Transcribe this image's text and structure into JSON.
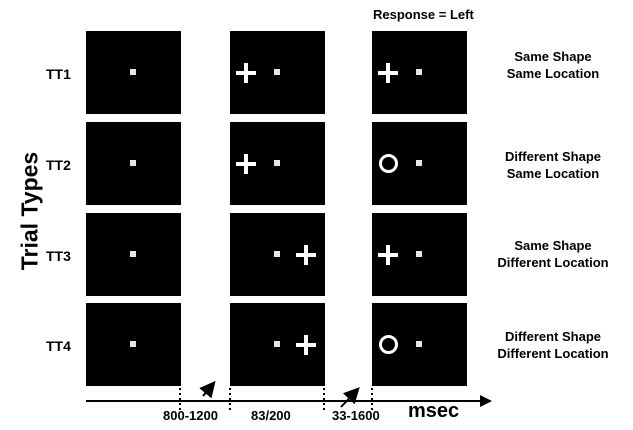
{
  "axis_title": "Trial Types",
  "response_label": "Response = Left",
  "trial_types": [
    {
      "label": "TT1",
      "condition_line1": "Same Shape",
      "condition_line2": "Same Location"
    },
    {
      "label": "TT2",
      "condition_line1": "Different Shape",
      "condition_line2": "Same Location"
    },
    {
      "label": "TT3",
      "condition_line1": "Same Shape",
      "condition_line2": "Different Location"
    },
    {
      "label": "TT4",
      "condition_line1": "Different Shape",
      "condition_line2": "Different Location"
    }
  ],
  "timeline": {
    "intervals": [
      "800-1200",
      "83/200",
      "33-1600"
    ],
    "unit": "msec"
  },
  "colors": {
    "panel": "#000000",
    "stimulus": "#ffffff",
    "background": "#ffffff"
  }
}
